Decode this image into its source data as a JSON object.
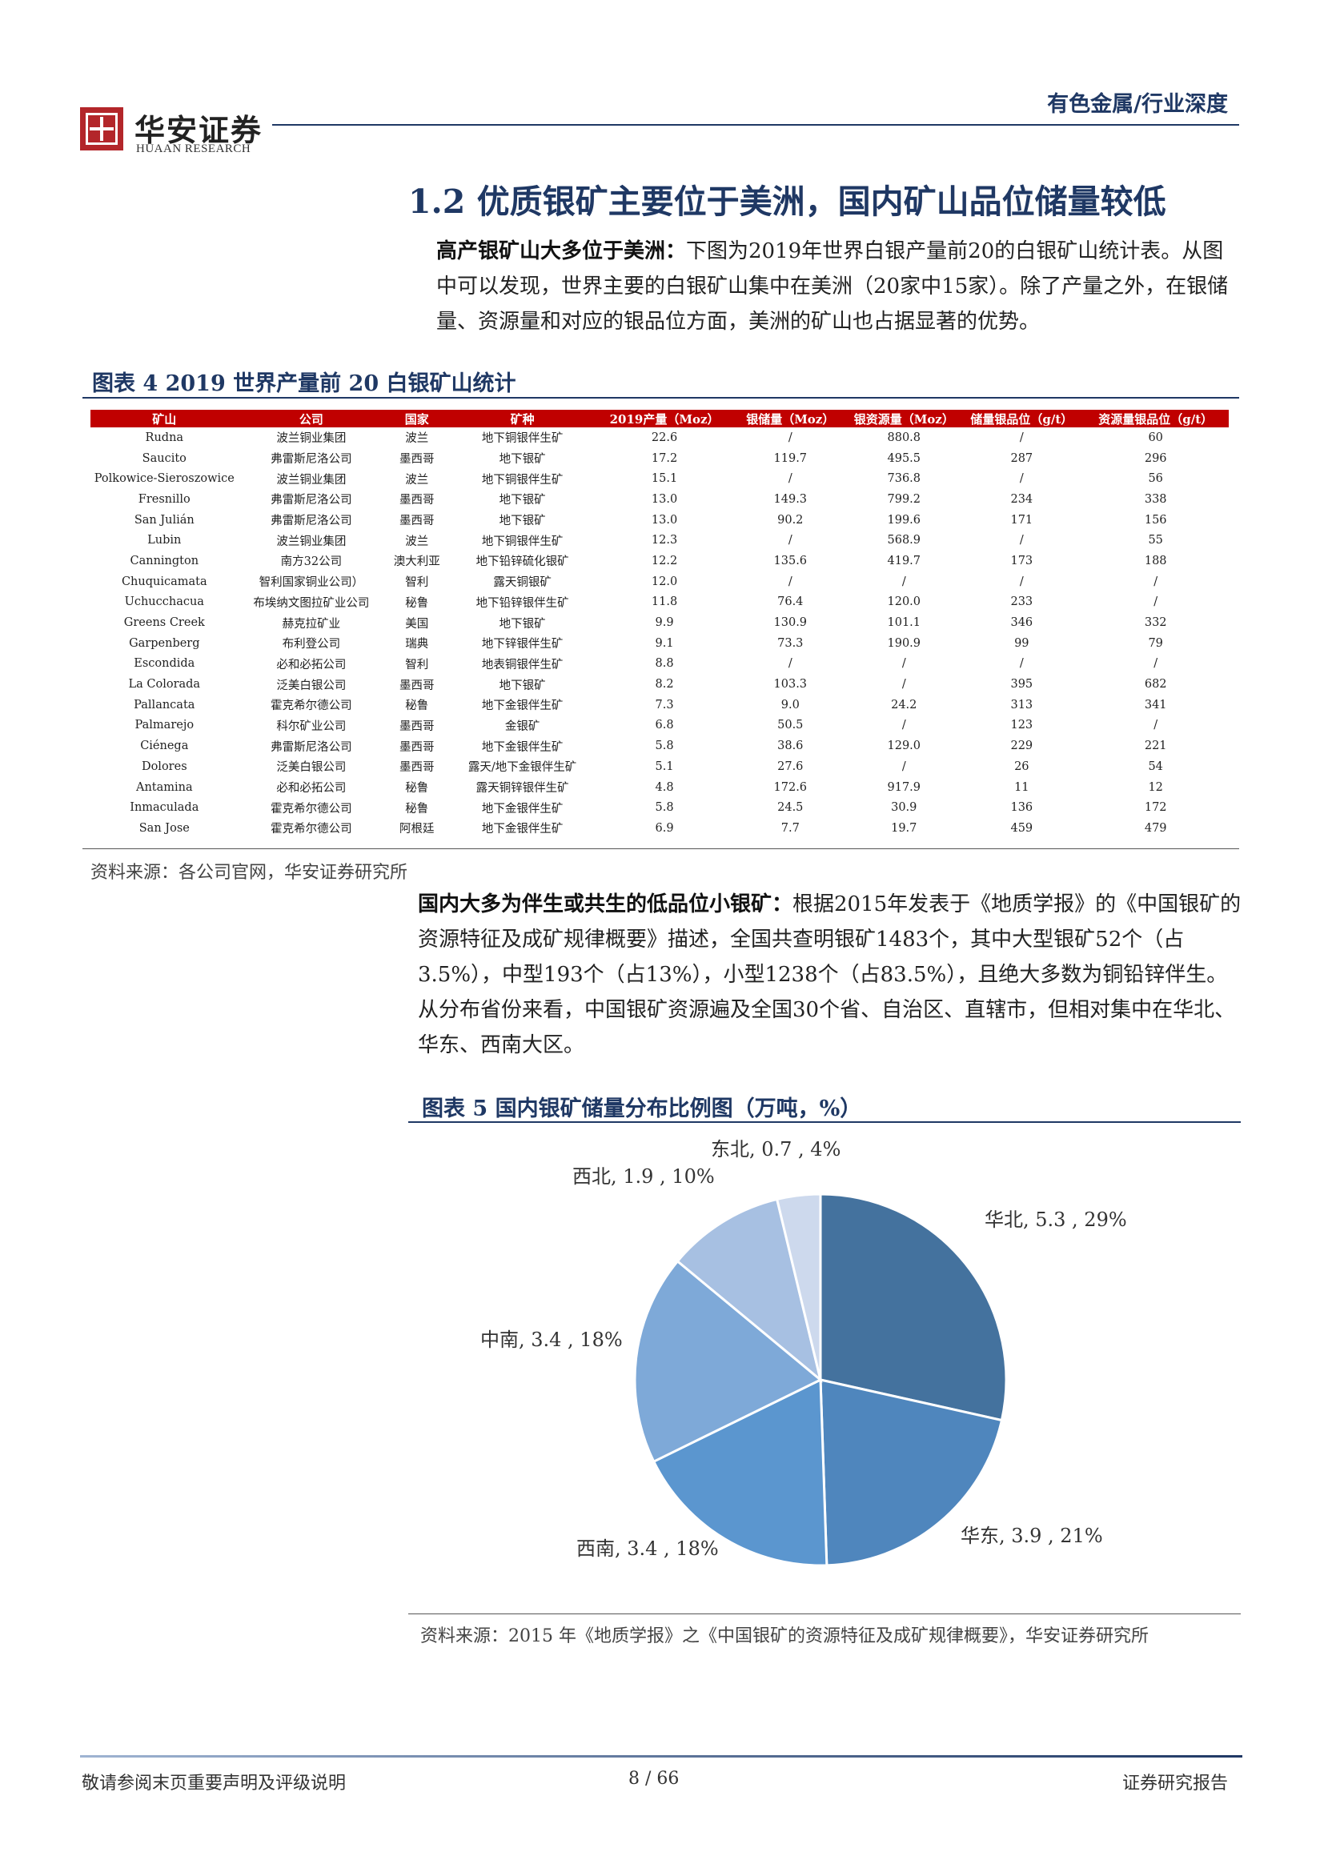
{
  "header": {
    "logo_cn": "华安证券",
    "logo_en": "HUAAN RESEARCH",
    "category": "有色金属/行业深度"
  },
  "section_title": "1.2 优质银矿主要位于美洲，国内矿山品位储量较低",
  "intro": {
    "lead": "高产银矿山大多位于美洲：",
    "body": "下图为2019年世界白银产量前20的白银矿山统计表。从图中可以发现，世界主要的白银矿山集中在美洲（20家中15家）。除了产量之外，在银储量、资源量和对应的银品位方面，美洲的矿山也占据显著的优势。"
  },
  "figure4": {
    "title": "图表 4 2019 世界产量前 20 白银矿山统计",
    "columns": [
      "矿山",
      "公司",
      "国家",
      "矿种",
      "2019产量（Moz）",
      "银储量（Moz）",
      "银资源量（Moz）",
      "储量银品位（g/t）",
      "资源量银品位（g/t）"
    ],
    "rows": [
      [
        "Rudna",
        "波兰铜业集团",
        "波兰",
        "地下铜银伴生矿",
        "22.6",
        "/",
        "880.8",
        "/",
        "60"
      ],
      [
        "Saucito",
        "弗雷斯尼洛公司",
        "墨西哥",
        "地下银矿",
        "17.2",
        "119.7",
        "495.5",
        "287",
        "296"
      ],
      [
        "Polkowice-Sieroszowice",
        "波兰铜业集团",
        "波兰",
        "地下铜银伴生矿",
        "15.1",
        "/",
        "736.8",
        "/",
        "56"
      ],
      [
        "Fresnillo",
        "弗雷斯尼洛公司",
        "墨西哥",
        "地下银矿",
        "13.0",
        "149.3",
        "799.2",
        "234",
        "338"
      ],
      [
        "San Julián",
        "弗雷斯尼洛公司",
        "墨西哥",
        "地下银矿",
        "13.0",
        "90.2",
        "199.6",
        "171",
        "156"
      ],
      [
        "Lubin",
        "波兰铜业集团",
        "波兰",
        "地下铜银伴生矿",
        "12.3",
        "/",
        "568.9",
        "/",
        "55"
      ],
      [
        "Cannington",
        "南方32公司",
        "澳大利亚",
        "地下铅锌硫化银矿",
        "12.2",
        "135.6",
        "419.7",
        "173",
        "188"
      ],
      [
        "Chuquicamata",
        "智利国家铜业公司）",
        "智利",
        "露天铜银矿",
        "12.0",
        "/",
        "/",
        "/",
        "/"
      ],
      [
        "Uchucchacua",
        "布埃纳文图拉矿业公司",
        "秘鲁",
        "地下铅锌银伴生矿",
        "11.8",
        "76.4",
        "120.0",
        "233",
        "/"
      ],
      [
        "Greens Creek",
        "赫克拉矿业",
        "美国",
        "地下银矿",
        "9.9",
        "130.9",
        "101.1",
        "346",
        "332"
      ],
      [
        "Garpenberg",
        "布利登公司",
        "瑞典",
        "地下锌银伴生矿",
        "9.1",
        "73.3",
        "190.9",
        "99",
        "79"
      ],
      [
        "Escondida",
        "必和必拓公司",
        "智利",
        "地表铜银伴生矿",
        "8.8",
        "/",
        "/",
        "/",
        "/"
      ],
      [
        "La Colorada",
        "泛美白银公司",
        "墨西哥",
        "地下银矿",
        "8.2",
        "103.3",
        "/",
        "395",
        "682"
      ],
      [
        "Pallancata",
        "霍克希尔德公司",
        "秘鲁",
        "地下金银伴生矿",
        "7.3",
        "9.0",
        "24.2",
        "313",
        "341"
      ],
      [
        "Palmarejo",
        "科尔矿业公司",
        "墨西哥",
        "金银矿",
        "6.8",
        "50.5",
        "/",
        "123",
        "/"
      ],
      [
        "Ciénega",
        "弗雷斯尼洛公司",
        "墨西哥",
        "地下金银伴生矿",
        "5.8",
        "38.6",
        "129.0",
        "229",
        "221"
      ],
      [
        "Dolores",
        "泛美白银公司",
        "墨西哥",
        "露天/地下金银伴生矿",
        "5.1",
        "27.6",
        "/",
        "26",
        "54"
      ],
      [
        "Antamina",
        "必和必拓公司",
        "秘鲁",
        "露天铜锌银伴生矿",
        "4.8",
        "172.6",
        "917.9",
        "11",
        "12"
      ],
      [
        "Inmaculada",
        "霍克希尔德公司",
        "秘鲁",
        "地下金银伴生矿",
        "5.8",
        "24.5",
        "30.9",
        "136",
        "172"
      ],
      [
        "San Jose",
        "霍克希尔德公司",
        "阿根廷",
        "地下金银伴生矿",
        "6.9",
        "7.7",
        "19.7",
        "459",
        "479"
      ]
    ],
    "source": "资料来源：各公司官网，华安证券研究所"
  },
  "domestic": {
    "lead": "国内大多为伴生或共生的低品位小银矿：",
    "body": "根据2015年发表于《地质学报》的《中国银矿的资源特征及成矿规律概要》描述，全国共查明银矿1483个，其中大型银矿52个（占3.5%），中型193个（占13%），小型1238个（占83.5%），且绝大多数为铜铅锌伴生。从分布省份来看，中国银矿资源遍及全国30个省、自治区、直辖市，但相对集中在华北、华东、西南大区。"
  },
  "figure5": {
    "title": "图表 5 国内银矿储量分布比例图（万吨，%）",
    "source": "资料来源：2015 年《地质学报》之《中国银矿的资源特征及成矿规律概要》，华安证券研究所"
  },
  "chart_data": {
    "type": "pie",
    "title": "图表 5 国内银矿储量分布比例图（万吨，%）",
    "slices": [
      {
        "name": "华北",
        "value": 5.3,
        "percent": "29%",
        "label": "华北, 5.3 , 29%",
        "color": "#44729e"
      },
      {
        "name": "华东",
        "value": 3.9,
        "percent": "21%",
        "label": "华东, 3.9 , 21%",
        "color": "#4f86bd"
      },
      {
        "name": "西南",
        "value": 3.4,
        "percent": "18%",
        "label": "西南, 3.4 , 18%",
        "color": "#5b96cf"
      },
      {
        "name": "中南",
        "value": 3.4,
        "percent": "18%",
        "label": "中南, 3.4 , 18%",
        "color": "#7ea9d8"
      },
      {
        "name": "西北",
        "value": 1.9,
        "percent": "10%",
        "label": "西北, 1.9 , 10%",
        "color": "#a7c0e2"
      },
      {
        "name": "东北",
        "value": 0.7,
        "percent": "4%",
        "label": "东北, 0.7 , 4%",
        "color": "#cdd9ed"
      }
    ],
    "start_angle": "12 o'clock, clockwise"
  },
  "footer": {
    "disclaimer": "敬请参阅末页重要声明及评级说明",
    "page": "8 / 66",
    "report_type": "证券研究报告"
  }
}
